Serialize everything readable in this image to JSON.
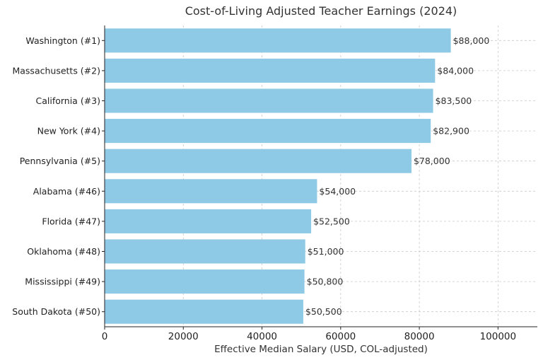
{
  "chart_data": {
    "type": "bar",
    "orientation": "horizontal",
    "title": "Cost-of-Living Adjusted Teacher Earnings (2024)",
    "xlabel": "Effective Median Salary (USD, COL-adjusted)",
    "ylabel": "",
    "categories": [
      "Washington  (#1)",
      "Massachusetts  (#2)",
      "California  (#3)",
      "New York  (#4)",
      "Pennsylvania  (#5)",
      "Alabama  (#46)",
      "Florida  (#47)",
      "Oklahoma  (#48)",
      "Mississippi  (#49)",
      "South Dakota  (#50)"
    ],
    "values": [
      88000,
      84000,
      83500,
      82900,
      78000,
      54000,
      52500,
      51000,
      50800,
      50500
    ],
    "data_labels": [
      "$88,000",
      "$84,000",
      "$83,500",
      "$82,900",
      "$78,000",
      "$54,000",
      "$52,500",
      "$51,000",
      "$50,800",
      "$50,500"
    ],
    "xlim": [
      0,
      110000
    ],
    "xticks": [
      0,
      20000,
      40000,
      60000,
      80000,
      100000
    ],
    "xtick_labels": [
      "0",
      "20000",
      "40000",
      "60000",
      "80000",
      "100000"
    ],
    "grid": true,
    "bar_color": "#8ecae6"
  }
}
